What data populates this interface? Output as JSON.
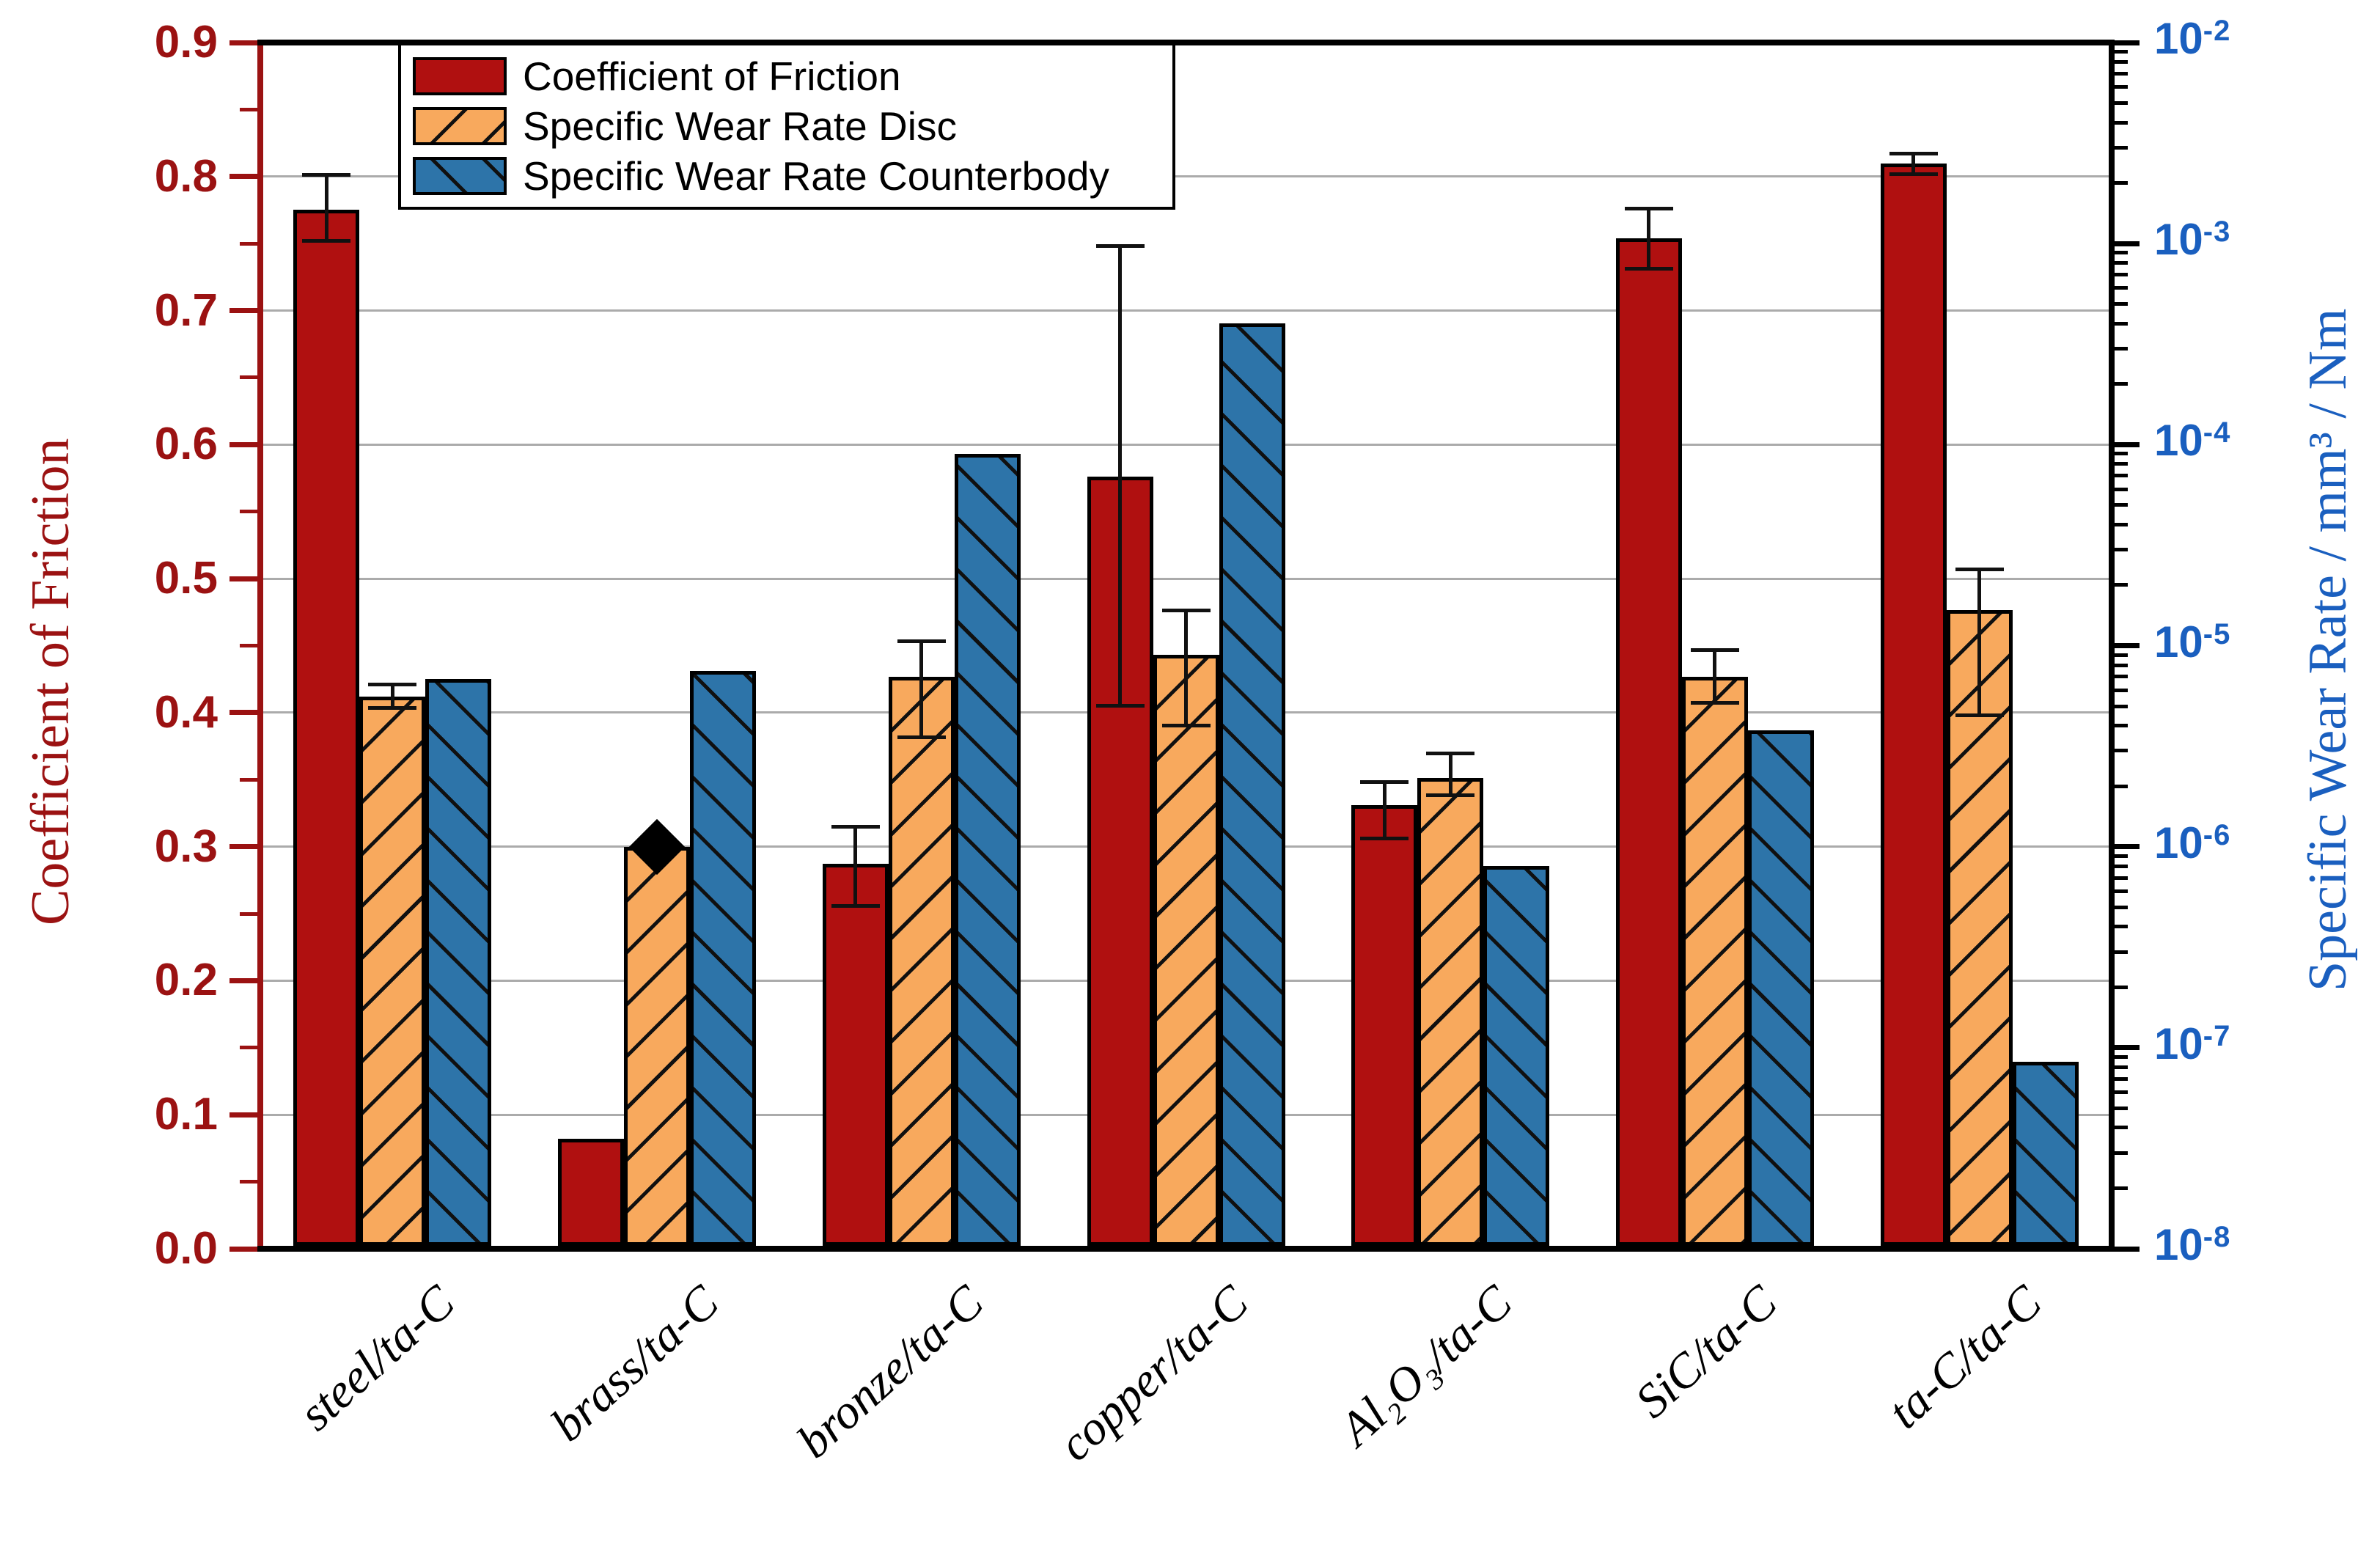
{
  "figure": {
    "left_axis": {
      "title": "Coefficient of Friction",
      "color": "#9B1212",
      "min": 0.0,
      "max": 0.9,
      "major_step": 0.1,
      "minor_step": 0.05,
      "tick_labels": [
        "0.0",
        "0.1",
        "0.2",
        "0.3",
        "0.4",
        "0.5",
        "0.6",
        "0.7",
        "0.8",
        "0.9"
      ]
    },
    "right_axis": {
      "title": "Specific Wear Rate / mm³ / Nm",
      "color": "#1A5FBF",
      "scale": "log",
      "min_exp": -8,
      "max_exp": -2,
      "tick_labels": [
        "10⁻²",
        "10⁻³",
        "10⁻⁴",
        "10⁻⁵",
        "10⁻⁶",
        "10⁻⁷",
        "10⁻⁸"
      ]
    },
    "legend": {
      "items": [
        {
          "label": "Coefficient of Friction",
          "swatch": "red-solid"
        },
        {
          "label": "Specific Wear Rate Disc",
          "swatch": "orange-forward-hatch"
        },
        {
          "label": "Specific Wear Rate Counterbody",
          "swatch": "blue-backward-hatch"
        }
      ]
    }
  },
  "chart_data": {
    "type": "bar",
    "grid": "horizontal-major-left-axis",
    "legend_position": "top-left-inside",
    "categories": [
      "steel/ta-C",
      "brass/ta-C",
      "bronze/ta-C",
      "copper/ta-C",
      "Al₂O₃/ta-C",
      "SiC/ta-C",
      "ta-C/ta-C"
    ],
    "left_ylim": [
      0.0,
      0.9
    ],
    "right_ylim": [
      1e-08,
      0.01
    ],
    "series": [
      {
        "name": "Coefficient of Friction",
        "axis": "left",
        "color": "#B01010",
        "hatch": "none",
        "values": [
          0.775,
          0.082,
          0.287,
          0.576,
          0.331,
          0.754,
          0.81
        ],
        "error_low": [
          0.752,
          null,
          0.256,
          0.405,
          0.306,
          0.731,
          0.802
        ],
        "error_high": [
          0.801,
          null,
          0.315,
          0.748,
          0.348,
          0.776,
          0.817
        ],
        "markers": [
          null,
          null,
          null,
          null,
          null,
          null,
          null
        ]
      },
      {
        "name": "Specific Wear Rate Disc",
        "axis": "right",
        "color": "#F8A95D",
        "hatch": "/",
        "values": [
          5.6e-06,
          1e-06,
          7e-06,
          9e-06,
          2.2e-06,
          7e-06,
          1.5e-05
        ],
        "error_low": [
          4.9e-06,
          null,
          3.5e-06,
          4e-06,
          1.8e-06,
          5.2e-06,
          4.5e-06
        ],
        "error_high": [
          6.4e-06,
          null,
          1.05e-05,
          1.5e-05,
          2.9e-06,
          9.5e-06,
          2.4e-05
        ],
        "markers": [
          null,
          "black-diamond",
          null,
          null,
          null,
          null,
          null
        ]
      },
      {
        "name": "Specific Wear Rate Counterbody",
        "axis": "right",
        "color": "#2D74A9",
        "hatch": "\\",
        "values": [
          6.8e-06,
          7.5e-06,
          9e-05,
          0.0004,
          8e-07,
          3.8e-06,
          8.5e-08
        ],
        "error_low": [
          null,
          null,
          null,
          null,
          null,
          null,
          null
        ],
        "error_high": [
          null,
          null,
          null,
          null,
          null,
          null,
          null
        ],
        "markers": [
          null,
          null,
          null,
          null,
          null,
          null,
          null
        ]
      }
    ]
  }
}
